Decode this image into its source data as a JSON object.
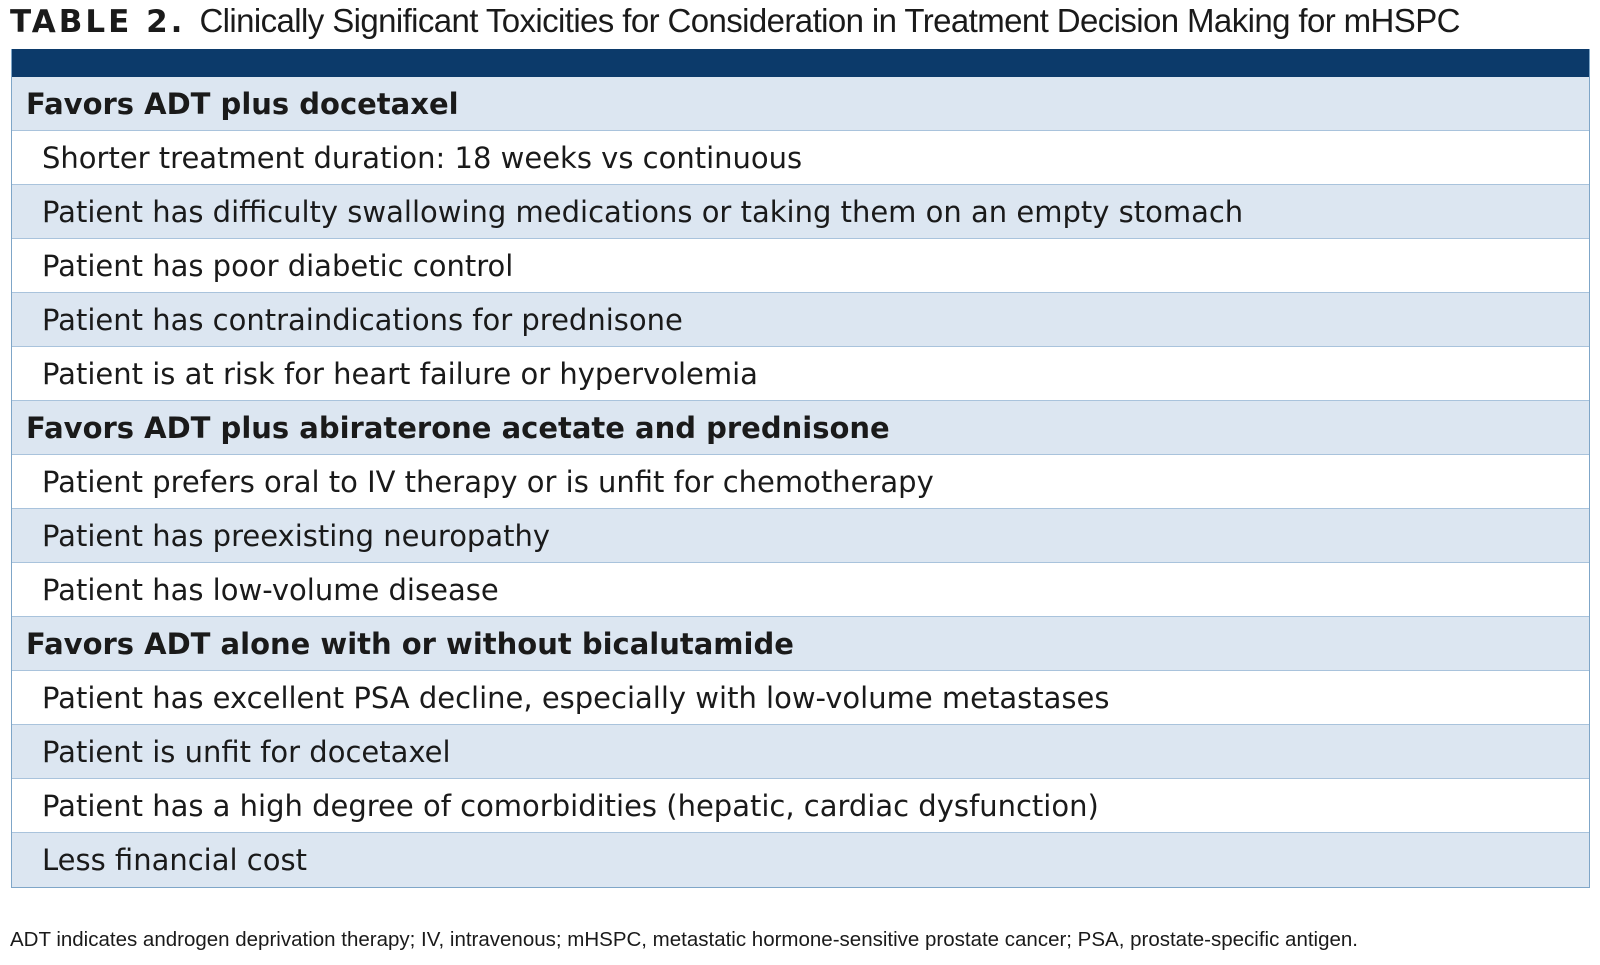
{
  "title": {
    "label": "TABLE 2.",
    "text": "Clinically Significant Toxicities for Consideration in Treatment Decision Making for mHSPC"
  },
  "table": {
    "rows": [
      {
        "type": "section",
        "text": "Favors ADT plus docetaxel"
      },
      {
        "type": "item",
        "text": "Shorter treatment duration: 18 weeks vs continuous"
      },
      {
        "type": "item",
        "text": "Patient has difficulty swallowing medications or taking them on an empty stomach"
      },
      {
        "type": "item",
        "text": "Patient has poor diabetic control"
      },
      {
        "type": "item",
        "text": "Patient has contraindications for prednisone"
      },
      {
        "type": "item",
        "text": "Patient is at risk for heart failure or hypervolemia"
      },
      {
        "type": "section",
        "text": "Favors ADT plus abiraterone acetate and prednisone"
      },
      {
        "type": "item",
        "text": "Patient prefers oral to IV therapy or is unfit for chemotherapy"
      },
      {
        "type": "item",
        "text": "Patient has preexisting neuropathy"
      },
      {
        "type": "item",
        "text": "Patient has low-volume disease"
      },
      {
        "type": "section",
        "text": "Favors ADT alone with or without bicalutamide"
      },
      {
        "type": "item",
        "text": "Patient has excellent PSA decline, especially with low-volume metastases"
      },
      {
        "type": "item",
        "text": "Patient is unfit for docetaxel"
      },
      {
        "type": "item",
        "text": "Patient has a high degree of comorbidities (hepatic, cardiac dysfunction)"
      },
      {
        "type": "item",
        "text": "Less financial cost"
      }
    ]
  },
  "footnote": "ADT indicates androgen deprivation therapy; IV, intravenous; mHSPC, metastatic hormone-sensitive prostate cancer; PSA, prostate-specific antigen.",
  "colors": {
    "header_bar": "#0c3a6a",
    "shaded_row": "#dce6f1",
    "white_row": "#ffffff",
    "row_border": "#a9c3dc"
  }
}
